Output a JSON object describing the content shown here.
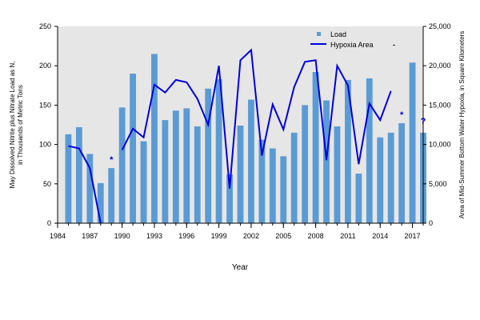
{
  "chart_data": {
    "type": "bar+line",
    "xlabel": "Year",
    "ylabel_left": [
      "May Dissolved Nitrite plus Nitrate Load as N,",
      "in Thousands of Metric Tons"
    ],
    "ylabel_right": "Area of Mid-Summer Bottom Water Hypoxia, in Square Kilometers",
    "ylim_left": [
      0,
      250
    ],
    "ylim_right": [
      0,
      25000
    ],
    "yticks_left": [
      "0",
      "50",
      "100",
      "150",
      "200",
      "250"
    ],
    "yticks_right": [
      "0",
      "5,000",
      "10,000",
      "15,000",
      "20,000",
      "25,000"
    ],
    "xlim": [
      1984,
      2018
    ],
    "xticks": [
      "1984",
      "1987",
      "1990",
      "1993",
      "1996",
      "1999",
      "2002",
      "2005",
      "2008",
      "2011",
      "2014",
      "2017"
    ],
    "grid": false,
    "legend_position": "top-right",
    "series": [
      {
        "name": "Load",
        "kind": "bar",
        "color": "#5b9bd5",
        "x": [
          1985,
          1986,
          1987,
          1988,
          1989,
          1990,
          1991,
          1992,
          1993,
          1994,
          1995,
          1996,
          1997,
          1998,
          1999,
          2000,
          2001,
          2002,
          2003,
          2004,
          2005,
          2006,
          2007,
          2008,
          2009,
          2010,
          2011,
          2012,
          2013,
          2014,
          2015,
          2016,
          2017,
          2018
        ],
        "values": [
          113,
          122,
          88,
          51,
          70,
          147,
          190,
          104,
          215,
          131,
          143,
          146,
          123,
          171,
          183,
          62,
          124,
          157,
          106,
          95,
          85,
          115,
          150,
          192,
          156,
          123,
          182,
          63,
          184,
          109,
          115,
          127,
          204,
          115
        ]
      },
      {
        "name": "Hypoxia Area",
        "kind": "line",
        "color": "#0000dd",
        "x": [
          1985,
          1986,
          1987,
          1988,
          1989,
          1990,
          1991,
          1992,
          1993,
          1994,
          1995,
          1996,
          1997,
          1998,
          1999,
          2000,
          2001,
          2002,
          2003,
          2004,
          2005,
          2006,
          2007,
          2008,
          2009,
          2010,
          2011,
          2012,
          2013,
          2014,
          2015
        ],
        "values": [
          9800,
          9500,
          7000,
          40,
          null,
          9300,
          12000,
          10900,
          17600,
          16600,
          18200,
          17900,
          15800,
          12500,
          20000,
          4400,
          20700,
          22000,
          8600,
          15100,
          11900,
          17300,
          20500,
          20700,
          8000,
          20000,
          17500,
          7500,
          15200,
          13100,
          16800
        ]
      }
    ],
    "annotations": [
      {
        "text": "*",
        "x": 1989,
        "y_right": 7700
      },
      {
        "text": "*",
        "x": 2016,
        "y_right": 13400
      },
      {
        "text": "?",
        "x": 2018,
        "y_right": 12600
      }
    ],
    "legend": {
      "load_label": "Load",
      "hypoxia_label": "Hypoxia Area",
      "extra_symbol": "-"
    }
  }
}
